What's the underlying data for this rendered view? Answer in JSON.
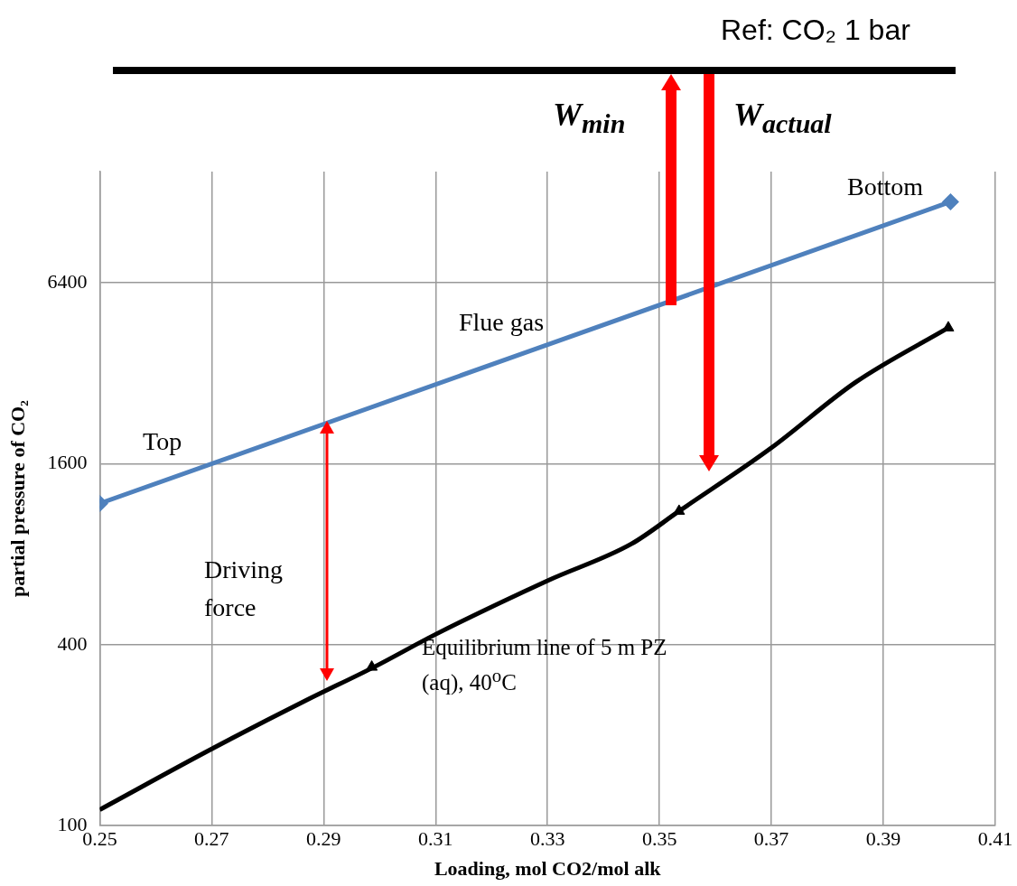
{
  "chart_data": {
    "type": "line",
    "xlabel": "Loading, mol CO2/mol alk",
    "ylabel": "partial pressure of CO₂",
    "xlim": [
      0.25,
      0.41
    ],
    "xticks": [
      0.25,
      0.27,
      0.29,
      0.31,
      0.33,
      0.35,
      0.37,
      0.39,
      0.41
    ],
    "ylim": [
      100,
      15000
    ],
    "yticks": [
      100,
      400,
      1600,
      6400
    ],
    "log": "y",
    "grid": true,
    "legend": false,
    "series": [
      {
        "name": "Flue gas",
        "color": "#4f81bd",
        "marker": "diamond",
        "x": [
          0.25,
          0.402
        ],
        "values": [
          1180,
          11900
        ]
      },
      {
        "name": "Equilibrium line of 5 m PZ (aq), 40$^{o}$C",
        "color": "#000000",
        "marker": "none",
        "x": [
          0.25,
          0.27,
          0.287,
          0.299,
          0.31,
          0.33,
          0.345,
          0.3535,
          0.37,
          0.385,
          0.4016
        ],
        "values": [
          113,
          180,
          262,
          337,
          433,
          653,
          866,
          1113,
          1808,
          2984,
          4535
        ]
      },
      {
        "type": "scatter",
        "color": "#000000",
        "marker": "triangle",
        "x": [
          0.2986,
          0.3535,
          0.4016
        ],
        "values": [
          337,
          1113,
          4535
        ]
      }
    ],
    "annotations": [
      "Top",
      "Bottom",
      "Driving force",
      "Ref: CO₂ 1 bar",
      "W$_{min}$",
      "W$_{actual}$"
    ]
  }
}
